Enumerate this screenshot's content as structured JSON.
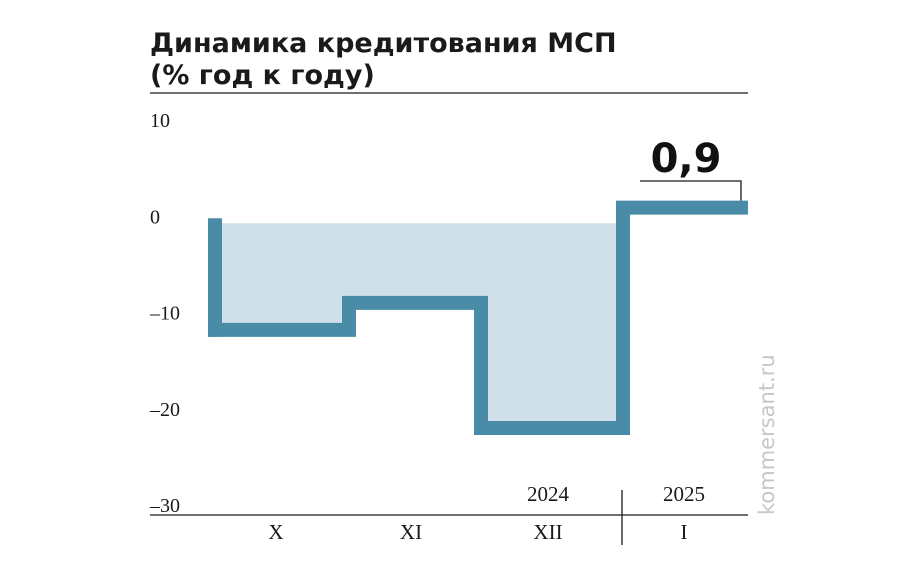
{
  "title_line1": "Динамика кредитования МСП",
  "title_line2": "(% год к году)",
  "source": "kommersant.ru",
  "colors": {
    "step": "#4a8ca8",
    "fill": "#cfe0ea",
    "text": "#1a1a1a",
    "source": "#c7c7c7"
  },
  "chart_data": {
    "type": "step",
    "title": "Динамика кредитования МСП",
    "subtitle": "(% год к году)",
    "categories": [
      "X",
      "XI",
      "XII",
      "I"
    ],
    "year_labels": [
      {
        "label": "2024",
        "over": "XII"
      },
      {
        "label": "2025",
        "over": "I"
      }
    ],
    "values": [
      -11.8,
      -9.0,
      -22.0,
      0.9
    ],
    "ylim": [
      -30,
      10
    ],
    "yticks": [
      {
        "value": 10,
        "label": "10"
      },
      {
        "value": 0,
        "label": "0"
      },
      {
        "value": -10,
        "label": "–10"
      },
      {
        "value": -20,
        "label": "–20"
      },
      {
        "value": -30,
        "label": "–30"
      }
    ],
    "callout": {
      "label": "0,9",
      "value": 0.9,
      "category": "I"
    },
    "grid": false
  }
}
